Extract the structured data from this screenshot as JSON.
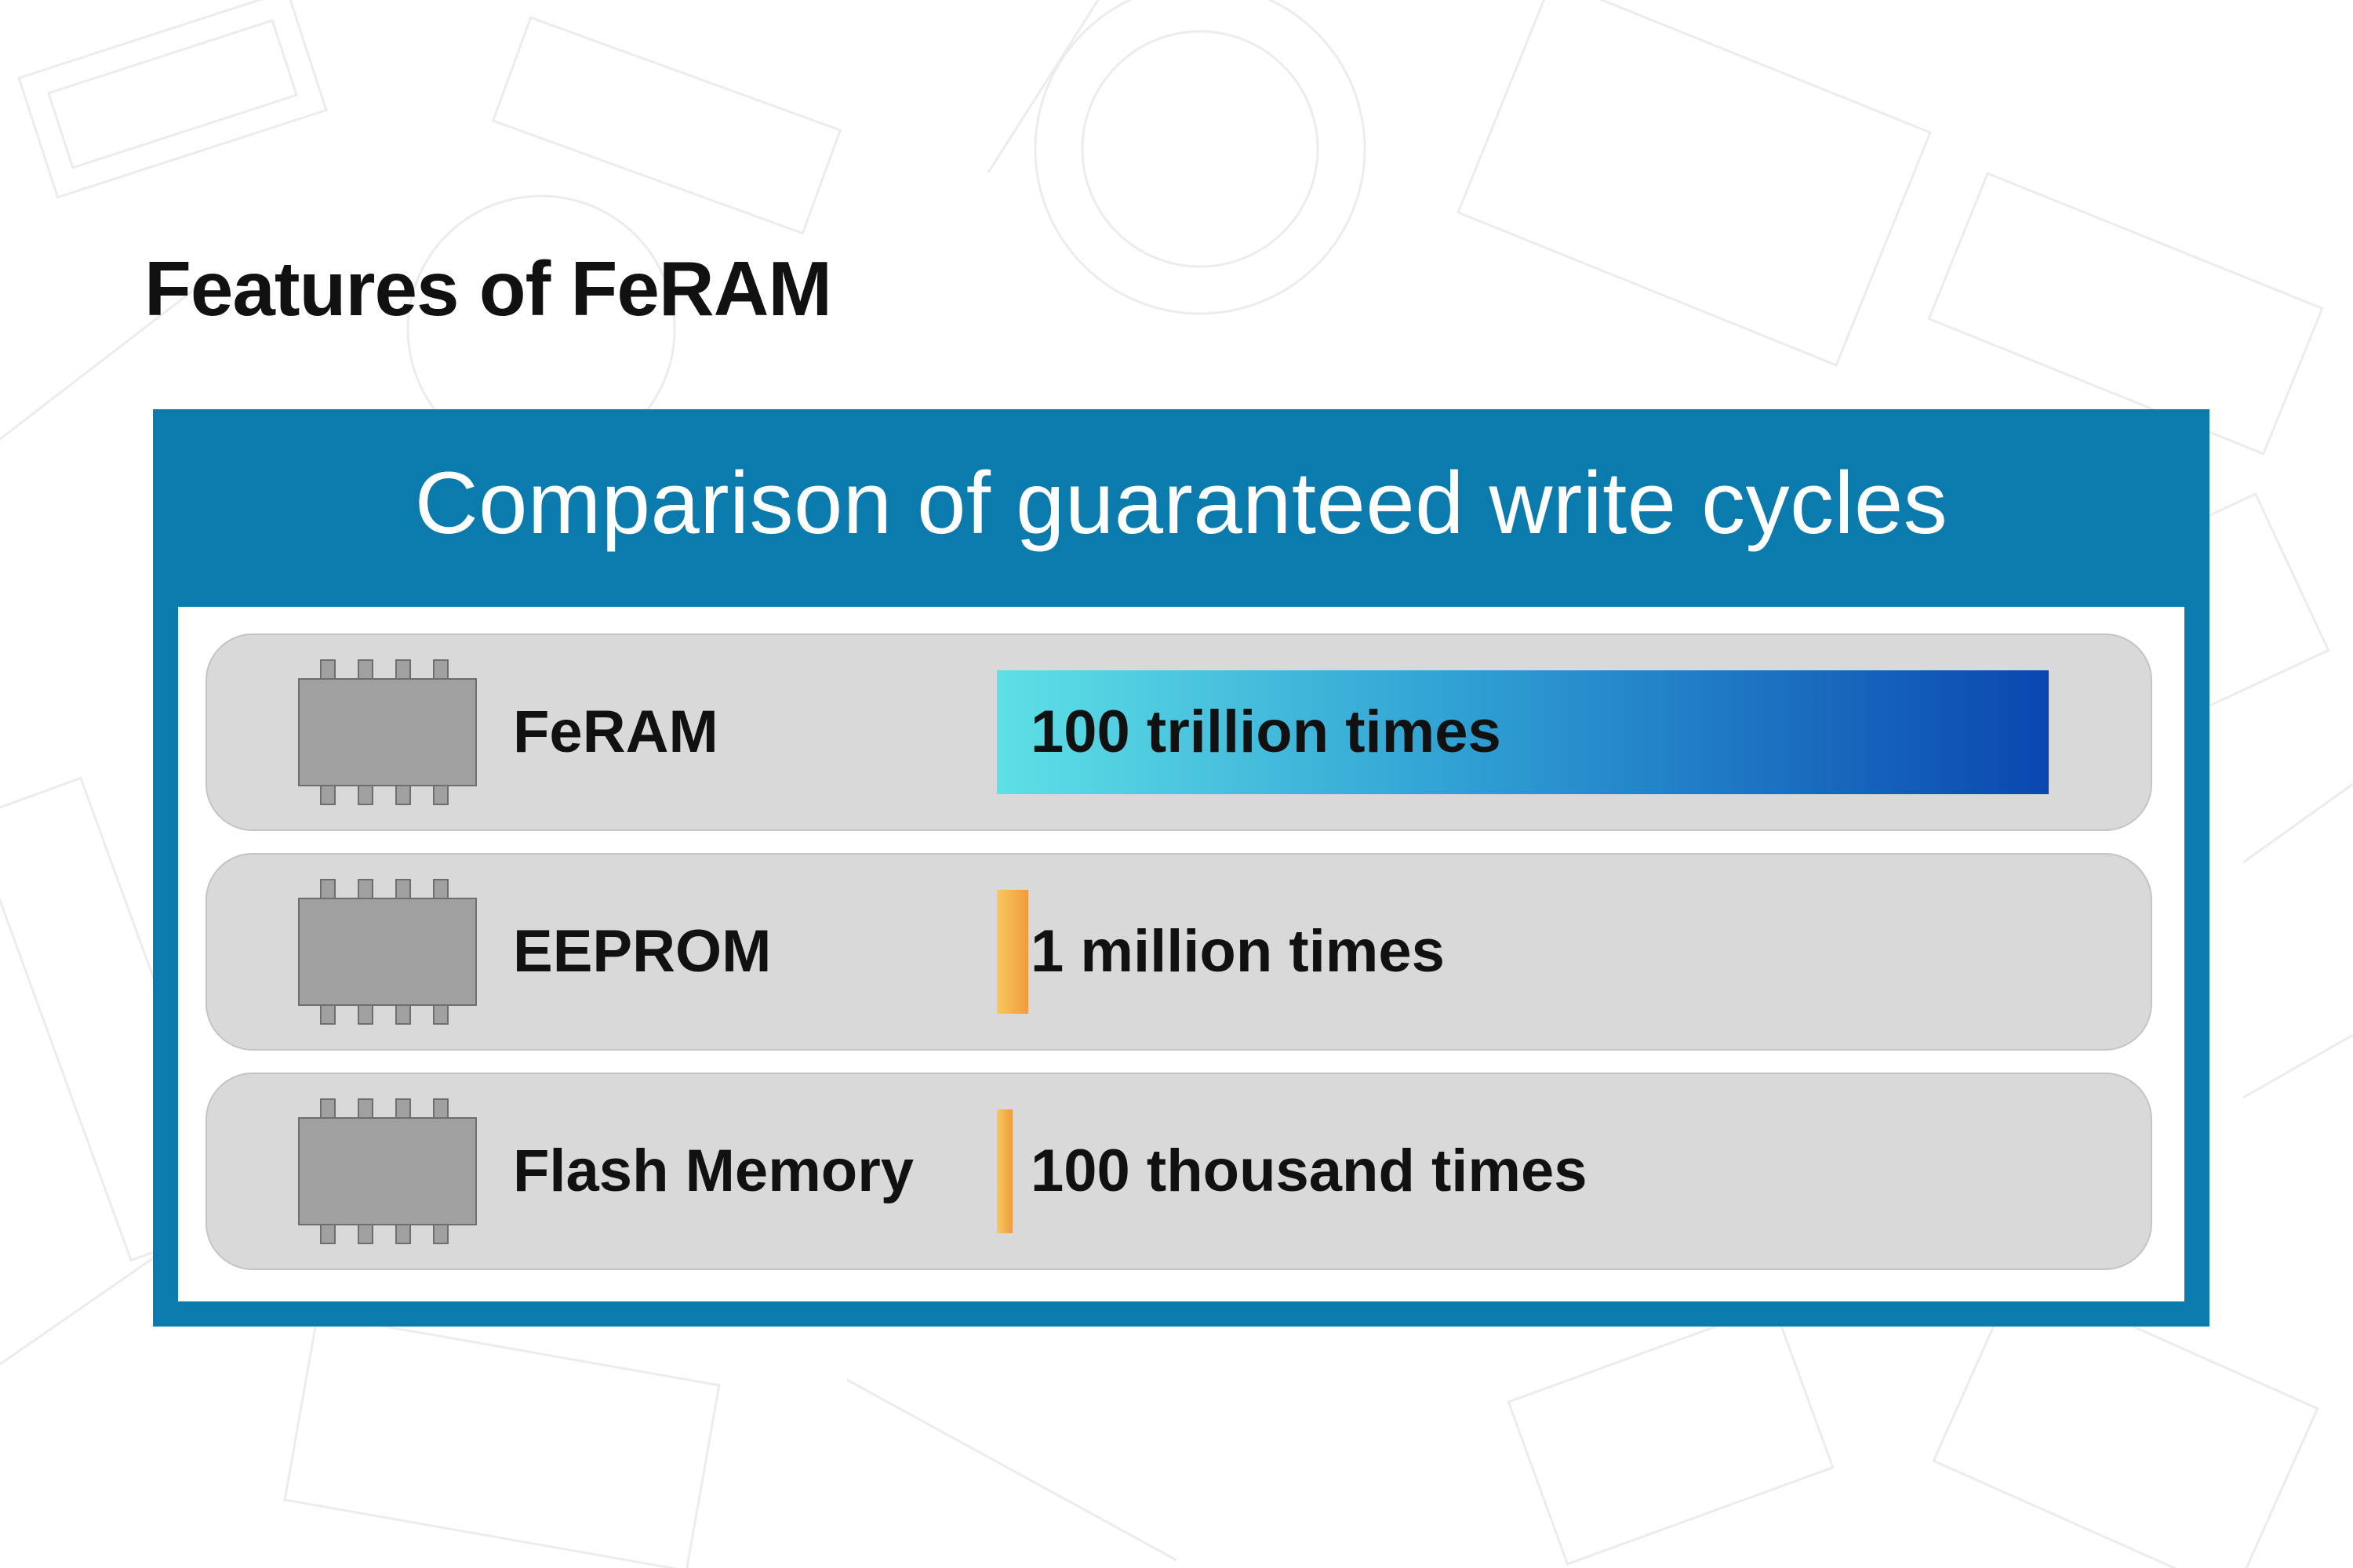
{
  "heading": "Features of FeRAM",
  "chart_data": {
    "type": "bar",
    "orientation": "horizontal",
    "title": "Comparison of guaranteed write cycles",
    "categories": [
      "FeRAM",
      "EEPROM",
      "Flash Memory"
    ],
    "values": [
      100000000000000,
      1000000,
      100000
    ],
    "value_labels": [
      "100 trillion times",
      "1 million times",
      "100 thousand times"
    ],
    "category_icons": [
      "chip-icon",
      "chip-icon",
      "chip-icon"
    ],
    "colors": {
      "panel": "#0a7bac",
      "row": "#d9d9d9",
      "chip": "#a0a0a0",
      "feram_bar_start": "#5ee0e6",
      "feram_bar_end": "#0a47b0",
      "other_bar_start": "#f7c860",
      "other_bar_end": "#f29a3c"
    }
  }
}
